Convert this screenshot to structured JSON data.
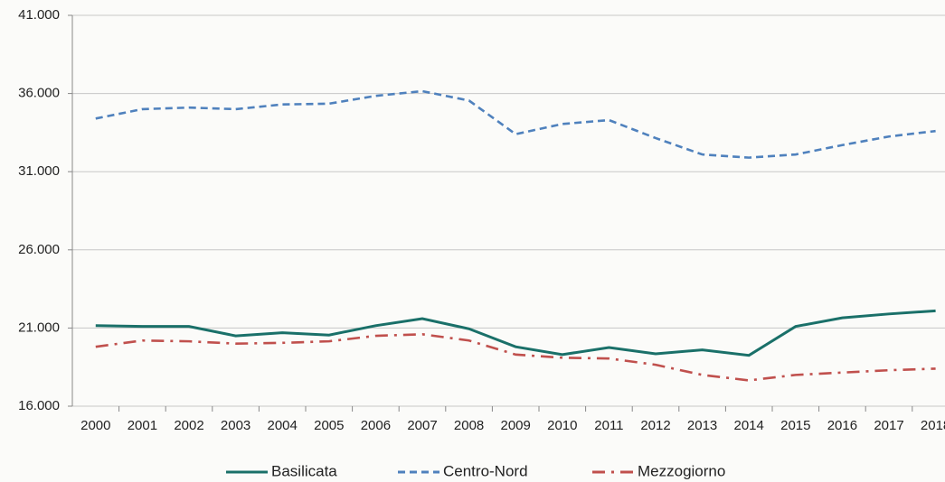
{
  "chart_data": {
    "type": "line",
    "categories": [
      "2000",
      "2001",
      "2002",
      "2003",
      "2004",
      "2005",
      "2006",
      "2007",
      "2008",
      "2009",
      "2010",
      "2011",
      "2012",
      "2013",
      "2014",
      "2015",
      "2016",
      "2017",
      "2018"
    ],
    "series": [
      {
        "name": "Basilicata",
        "color": "#1a7069",
        "style": "solid",
        "values": [
          21150,
          21100,
          21100,
          20500,
          20700,
          20550,
          21150,
          21600,
          20950,
          19800,
          19300,
          19750,
          19350,
          19600,
          19250,
          21100,
          21650,
          21900,
          22100
        ]
      },
      {
        "name": "Centro-Nord",
        "color": "#4f81bd",
        "style": "dashed",
        "values": [
          34400,
          35000,
          35100,
          35000,
          35300,
          35350,
          35850,
          36150,
          35550,
          33400,
          34050,
          34300,
          33150,
          32100,
          31900,
          32100,
          32700,
          33250,
          33600
        ]
      },
      {
        "name": "Mezzogiorno",
        "color": "#c0504d",
        "style": "dashdot",
        "values": [
          19800,
          20200,
          20150,
          20000,
          20050,
          20150,
          20500,
          20600,
          20200,
          19300,
          19100,
          19050,
          18650,
          18000,
          17650,
          18000,
          18150,
          18300,
          18400
        ]
      }
    ],
    "ylim": [
      16000,
      41000
    ],
    "yticks": [
      {
        "value": 16000,
        "label": "16.000"
      },
      {
        "value": 21000,
        "label": "21.000"
      },
      {
        "value": 26000,
        "label": "26.000"
      },
      {
        "value": 31000,
        "label": "31.000"
      },
      {
        "value": 36000,
        "label": "36.000"
      },
      {
        "value": 41000,
        "label": "41.000"
      }
    ],
    "grid": true,
    "legend": "bottom"
  }
}
